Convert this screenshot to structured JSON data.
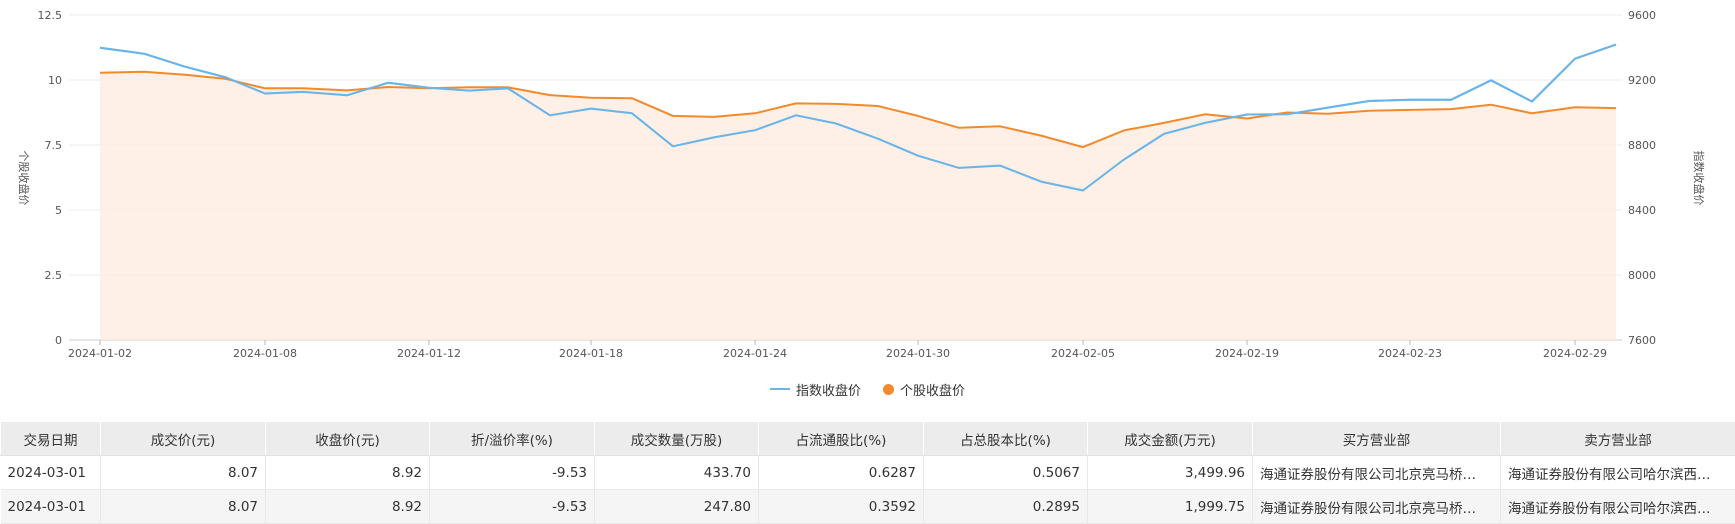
{
  "chart_data": {
    "type": "line",
    "x": [
      "2024-01-02",
      "2024-01-03",
      "2024-01-04",
      "2024-01-05",
      "2024-01-08",
      "2024-01-09",
      "2024-01-10",
      "2024-01-11",
      "2024-01-12",
      "2024-01-15",
      "2024-01-16",
      "2024-01-17",
      "2024-01-18",
      "2024-01-19",
      "2024-01-22",
      "2024-01-23",
      "2024-01-24",
      "2024-01-25",
      "2024-01-26",
      "2024-01-29",
      "2024-01-30",
      "2024-01-31",
      "2024-02-01",
      "2024-02-02",
      "2024-02-05",
      "2024-02-06",
      "2024-02-07",
      "2024-02-08",
      "2024-02-19",
      "2024-02-20",
      "2024-02-21",
      "2024-02-22",
      "2024-02-23",
      "2024-02-26",
      "2024-02-27",
      "2024-02-28",
      "2024-02-29",
      "2024-03-01"
    ],
    "x_tick_labels": [
      "2024-01-02",
      "2024-01-08",
      "2024-01-12",
      "2024-01-18",
      "2024-01-24",
      "2024-01-30",
      "2024-02-05",
      "2024-02-19",
      "2024-02-23",
      "2024-02-29"
    ],
    "series": [
      {
        "name": "指数收盘价",
        "axis": "right",
        "color": "#69b4e8",
        "values": [
          9398,
          9362,
          9282,
          9218,
          9117,
          9127,
          9106,
          9183,
          9152,
          9135,
          9148,
          8983,
          9024,
          8995,
          8792,
          8847,
          8891,
          8983,
          8932,
          8839,
          8734,
          8659,
          8673,
          8575,
          8520,
          8711,
          8868,
          8936,
          8988,
          8989,
          9030,
          9071,
          9079,
          9078,
          9198,
          9068,
          9331,
          9418
        ]
      },
      {
        "name": "个股收盘价",
        "axis": "left",
        "color": "#f28a2c",
        "area": true,
        "values": [
          10.28,
          10.32,
          10.2,
          10.05,
          9.68,
          9.68,
          9.6,
          9.73,
          9.68,
          9.72,
          9.72,
          9.42,
          9.32,
          9.3,
          8.62,
          8.58,
          8.72,
          9.1,
          9.08,
          9.0,
          8.62,
          8.16,
          8.22,
          7.86,
          7.42,
          8.06,
          8.35,
          8.68,
          8.52,
          8.75,
          8.7,
          8.82,
          8.85,
          8.88,
          9.05,
          8.72,
          8.95,
          8.92
        ]
      }
    ],
    "y_left": {
      "label": "个股收盘价",
      "min": 0,
      "max": 12.5,
      "ticks": [
        "0",
        "2.5",
        "5",
        "7.5",
        "10",
        "12.5"
      ]
    },
    "y_right": {
      "label": "指数收盘价",
      "min": 7600,
      "max": 9600,
      "ticks": [
        "7600",
        "8000",
        "8400",
        "8800",
        "9200",
        "9600"
      ]
    },
    "grid": true,
    "legend_position": "bottom-center"
  },
  "legend": [
    {
      "label": "指数收盘价",
      "shape": "line",
      "color": "#69b4e8"
    },
    {
      "label": "个股收盘价",
      "shape": "circle",
      "color": "#f28a2c"
    }
  ],
  "table": {
    "headers": [
      "交易日期",
      "成交价(元)",
      "收盘价(元)",
      "折/溢价率(%)",
      "成交数量(万股)",
      "占流通股比(%)",
      "占总股本比(%)",
      "成交金额(万元)",
      "买方营业部",
      "卖方营业部"
    ],
    "rows": [
      [
        "2024-03-01",
        "8.07",
        "8.92",
        "-9.53",
        "433.70",
        "0.6287",
        "0.5067",
        "3,499.96",
        "海通证券股份有限公司北京亮马桥…",
        "海通证券股份有限公司哈尔滨西…"
      ],
      [
        "2024-03-01",
        "8.07",
        "8.92",
        "-9.53",
        "247.80",
        "0.3592",
        "0.2895",
        "1,999.75",
        "海通证券股份有限公司北京亮马桥…",
        "海通证券股份有限公司哈尔滨西…"
      ]
    ]
  }
}
